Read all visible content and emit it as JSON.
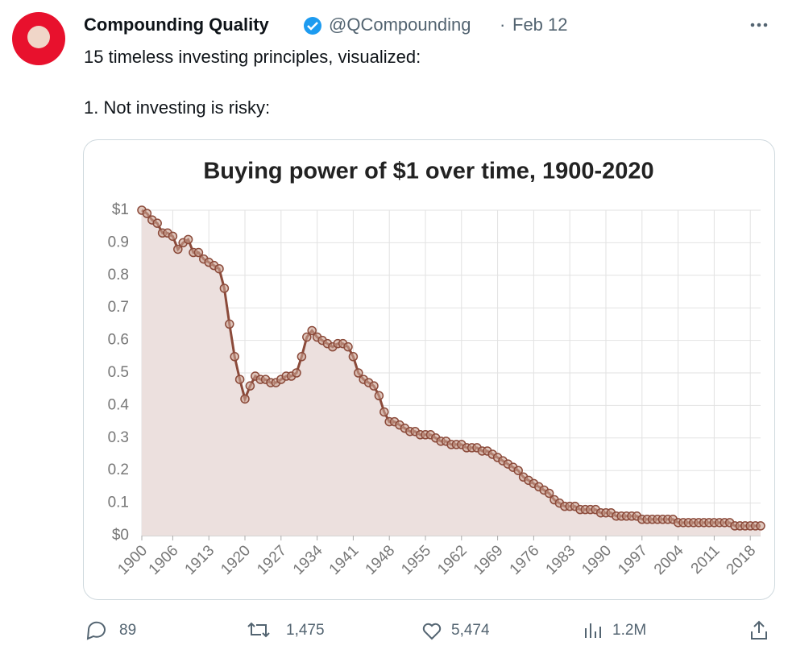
{
  "tweet": {
    "author_name": "Compounding Quality",
    "handle": "@QCompounding",
    "separator": "·",
    "date": "Feb 12",
    "text_line_1": "15 timeless investing principles, visualized:",
    "text_line_2": "1.  Not investing is risky:",
    "replies": "89",
    "retweets": "1,475",
    "likes": "5,474",
    "views": "1.2M"
  },
  "chart_data": {
    "type": "area",
    "title": "Buying power of $1 over time, 1900-2020",
    "x": [
      1900,
      1901,
      1902,
      1903,
      1904,
      1905,
      1906,
      1907,
      1908,
      1909,
      1910,
      1911,
      1912,
      1913,
      1914,
      1915,
      1916,
      1917,
      1918,
      1919,
      1920,
      1921,
      1922,
      1923,
      1924,
      1925,
      1926,
      1927,
      1928,
      1929,
      1930,
      1931,
      1932,
      1933,
      1934,
      1935,
      1936,
      1937,
      1938,
      1939,
      1940,
      1941,
      1942,
      1943,
      1944,
      1945,
      1946,
      1947,
      1948,
      1949,
      1950,
      1951,
      1952,
      1953,
      1954,
      1955,
      1956,
      1957,
      1958,
      1959,
      1960,
      1961,
      1962,
      1963,
      1964,
      1965,
      1966,
      1967,
      1968,
      1969,
      1970,
      1971,
      1972,
      1973,
      1974,
      1975,
      1976,
      1977,
      1978,
      1979,
      1980,
      1981,
      1982,
      1983,
      1984,
      1985,
      1986,
      1987,
      1988,
      1989,
      1990,
      1991,
      1992,
      1993,
      1994,
      1995,
      1996,
      1997,
      1998,
      1999,
      2000,
      2001,
      2002,
      2003,
      2004,
      2005,
      2006,
      2007,
      2008,
      2009,
      2010,
      2011,
      2012,
      2013,
      2014,
      2015,
      2016,
      2017,
      2018,
      2019,
      2020
    ],
    "values": [
      1.0,
      0.99,
      0.97,
      0.96,
      0.93,
      0.93,
      0.92,
      0.88,
      0.9,
      0.91,
      0.87,
      0.87,
      0.85,
      0.84,
      0.83,
      0.82,
      0.76,
      0.65,
      0.55,
      0.48,
      0.42,
      0.46,
      0.49,
      0.48,
      0.48,
      0.47,
      0.47,
      0.48,
      0.49,
      0.49,
      0.5,
      0.55,
      0.61,
      0.63,
      0.61,
      0.6,
      0.59,
      0.58,
      0.59,
      0.59,
      0.58,
      0.55,
      0.5,
      0.48,
      0.47,
      0.46,
      0.43,
      0.38,
      0.35,
      0.35,
      0.34,
      0.33,
      0.32,
      0.32,
      0.31,
      0.31,
      0.31,
      0.3,
      0.29,
      0.29,
      0.28,
      0.28,
      0.28,
      0.27,
      0.27,
      0.27,
      0.26,
      0.26,
      0.25,
      0.24,
      0.23,
      0.22,
      0.21,
      0.2,
      0.18,
      0.17,
      0.16,
      0.15,
      0.14,
      0.13,
      0.11,
      0.1,
      0.09,
      0.09,
      0.09,
      0.08,
      0.08,
      0.08,
      0.08,
      0.07,
      0.07,
      0.07,
      0.06,
      0.06,
      0.06,
      0.06,
      0.06,
      0.05,
      0.05,
      0.05,
      0.05,
      0.05,
      0.05,
      0.05,
      0.04,
      0.04,
      0.04,
      0.04,
      0.04,
      0.04,
      0.04,
      0.04,
      0.04,
      0.04,
      0.04,
      0.03,
      0.03,
      0.03,
      0.03,
      0.03,
      0.03
    ],
    "color": "#8b4a3a",
    "fill": "#ece0de",
    "xlim": [
      1900,
      2020
    ],
    "xticks": [
      1900,
      1906,
      1913,
      1920,
      1927,
      1934,
      1941,
      1948,
      1955,
      1962,
      1969,
      1976,
      1983,
      1990,
      1997,
      2004,
      2011,
      2018
    ],
    "ylim": [
      0,
      1
    ],
    "yticks": [
      {
        "value": 0,
        "label": "$0"
      },
      0.1,
      0.2,
      0.3,
      0.4,
      0.5,
      0.6,
      0.7,
      0.8,
      0.9,
      {
        "value": 1,
        "label": "$1"
      }
    ],
    "grid": true
  }
}
